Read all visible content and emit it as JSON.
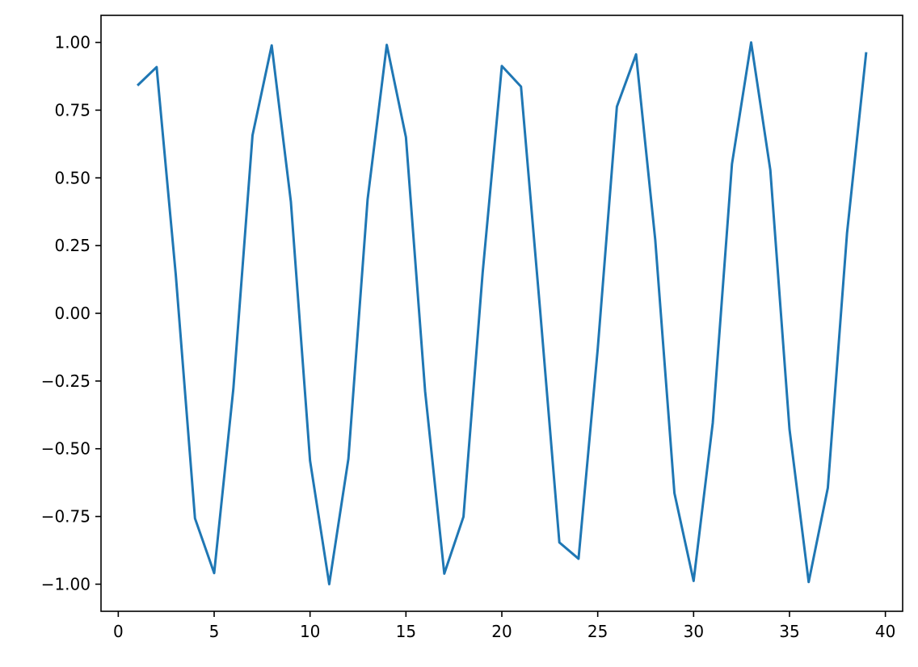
{
  "chart_data": {
    "type": "line",
    "title": "",
    "xlabel": "",
    "ylabel": "",
    "xlim": [
      -0.9,
      40.9
    ],
    "ylim": [
      -1.1,
      1.1
    ],
    "grid": false,
    "line_color": "#1f77b4",
    "x_ticks": [
      {
        "value": 0,
        "label": "0"
      },
      {
        "value": 5,
        "label": "5"
      },
      {
        "value": 10,
        "label": "10"
      },
      {
        "value": 15,
        "label": "15"
      },
      {
        "value": 20,
        "label": "20"
      },
      {
        "value": 25,
        "label": "25"
      },
      {
        "value": 30,
        "label": "30"
      },
      {
        "value": 35,
        "label": "35"
      },
      {
        "value": 40,
        "label": "40"
      }
    ],
    "y_ticks": [
      {
        "value": 1.0,
        "label": "1.00"
      },
      {
        "value": 0.75,
        "label": "0.75"
      },
      {
        "value": 0.5,
        "label": "0.50"
      },
      {
        "value": 0.25,
        "label": "0.25"
      },
      {
        "value": 0.0,
        "label": "0.00"
      },
      {
        "value": -0.25,
        "label": "−0.25"
      },
      {
        "value": -0.5,
        "label": "−0.50"
      },
      {
        "value": -0.75,
        "label": "−0.75"
      },
      {
        "value": -1.0,
        "label": "−1.00"
      }
    ],
    "series": [
      {
        "x": [
          1,
          2,
          3,
          4,
          5,
          6,
          7,
          8,
          9,
          10,
          11,
          12,
          13,
          14,
          15,
          16,
          17,
          18,
          19,
          20,
          21,
          22,
          23,
          24,
          25,
          26,
          27,
          28,
          29,
          30,
          31,
          32,
          33,
          34,
          35,
          36,
          37,
          38,
          39
        ],
        "y": [
          0.841,
          0.909,
          0.141,
          -0.757,
          -0.959,
          -0.279,
          0.657,
          0.989,
          0.412,
          -0.544,
          -1.0,
          -0.537,
          0.42,
          0.991,
          0.65,
          -0.288,
          -0.961,
          -0.751,
          0.15,
          0.913,
          0.837,
          0.009,
          -0.846,
          -0.906,
          -0.132,
          0.763,
          0.956,
          0.271,
          -0.664,
          -0.988,
          -0.404,
          0.551,
          1.0,
          0.529,
          -0.428,
          -0.992,
          -0.644,
          0.296,
          0.964
        ]
      }
    ]
  }
}
